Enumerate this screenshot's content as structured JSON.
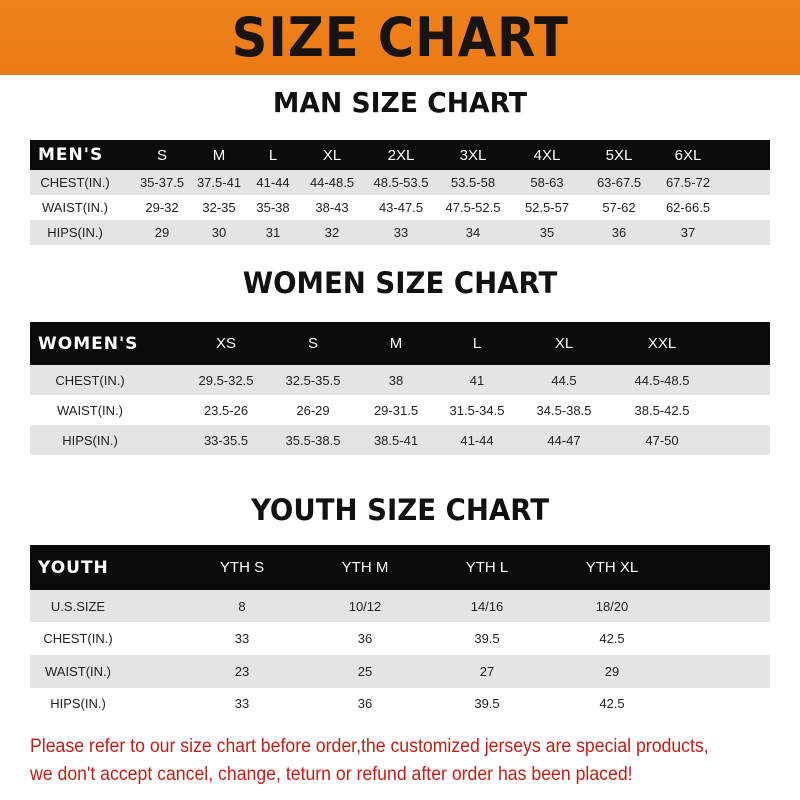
{
  "title": "SIZE CHART",
  "men": {
    "heading": "MAN SIZE CHART",
    "label": "MEN'S",
    "sizes": [
      "S",
      "M",
      "L",
      "XL",
      "2XL",
      "3XL",
      "4XL",
      "5XL",
      "6XL"
    ],
    "rows": [
      {
        "label": "CHEST(IN.)",
        "values": [
          "35-37.5",
          "37.5-41",
          "41-44",
          "44-48.5",
          "48.5-53.5",
          "53.5-58",
          "58-63",
          "63-67.5",
          "67.5-72"
        ]
      },
      {
        "label": "WAIST(IN.)",
        "values": [
          "29-32",
          "32-35",
          "35-38",
          "38-43",
          "43-47.5",
          "47.5-52.5",
          "52.5-57",
          "57-62",
          "62-66.5"
        ]
      },
      {
        "label": "HIPS(IN.)",
        "values": [
          "29",
          "30",
          "31",
          "32",
          "33",
          "34",
          "35",
          "36",
          "37"
        ]
      }
    ]
  },
  "women": {
    "heading": "WOMEN SIZE CHART",
    "label": "WOMEN'S",
    "sizes": [
      "XS",
      "S",
      "M",
      "L",
      "XL",
      "XXL"
    ],
    "rows": [
      {
        "label": "CHEST(IN.)",
        "values": [
          "29.5-32.5",
          "32.5-35.5",
          "38",
          "41",
          "44.5",
          "44.5-48.5"
        ]
      },
      {
        "label": "WAIST(IN.)",
        "values": [
          "23.5-26",
          "26-29",
          "29-31.5",
          "31.5-34.5",
          "34.5-38.5",
          "38.5-42.5"
        ]
      },
      {
        "label": "HIPS(IN.)",
        "values": [
          "33-35.5",
          "35.5-38.5",
          "38.5-41",
          "41-44",
          "44-47",
          "47-50"
        ]
      }
    ]
  },
  "youth": {
    "heading": "YOUTH SIZE CHART",
    "label": "YOUTH",
    "sizes": [
      "YTH S",
      "YTH M",
      "YTH L",
      "YTH XL"
    ],
    "rows": [
      {
        "label": "U.S.SIZE",
        "values": [
          "8",
          "10/12",
          "14/16",
          "18/20"
        ]
      },
      {
        "label": "CHEST(IN.)",
        "values": [
          "33",
          "36",
          "39.5",
          "42.5"
        ]
      },
      {
        "label": "WAIST(IN.)",
        "values": [
          "23",
          "25",
          "27",
          "29"
        ]
      },
      {
        "label": "HIPS(IN.)",
        "values": [
          "33",
          "36",
          "39.5",
          "42.5"
        ]
      }
    ]
  },
  "note": {
    "line1": "Please refer to our size chart before order,the customized jerseys are special products,",
    "line2": "we don't accept cancel, change, teturn or refund after order has been placed!"
  },
  "colors": {
    "banner": "#f0821e",
    "header": "#0c0a0a",
    "stripe": "#e4e4e4",
    "note": "#c0201a"
  }
}
